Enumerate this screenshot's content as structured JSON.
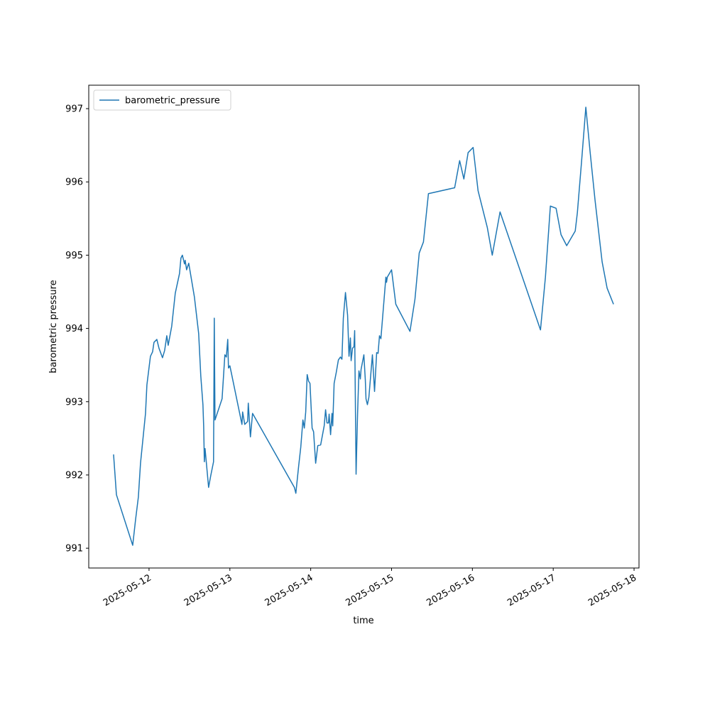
{
  "chart_data": {
    "type": "line",
    "x_label": "time",
    "y_label": "barometric pressure",
    "legend": "upper left",
    "xlim": [
      "2025-05-11T06:06",
      "2025-05-18T01:28"
    ],
    "xticks": [
      "2025-05-12",
      "2025-05-13",
      "2025-05-14",
      "2025-05-15",
      "2025-05-16",
      "2025-05-17",
      "2025-05-18"
    ],
    "ylim": [
      990.73,
      997.32
    ],
    "yticks": [
      991,
      992,
      993,
      994,
      995,
      996,
      997
    ],
    "x": [
      "2025-05-11T13:28",
      "2025-05-11T14:19",
      "2025-05-11T19:09",
      "2025-05-11T20:00",
      "2025-05-11T20:50",
      "2025-05-11T21:28",
      "2025-05-11T22:57",
      "2025-05-11T23:22",
      "2025-05-12T00:25",
      "2025-05-12T01:03",
      "2025-05-12T01:28",
      "2025-05-12T02:19",
      "2025-05-12T02:57",
      "2025-05-12T04:00",
      "2025-05-12T04:38",
      "2025-05-12T05:16",
      "2025-05-12T05:41",
      "2025-05-12T06:44",
      "2025-05-12T07:47",
      "2025-05-12T09:03",
      "2025-05-12T09:28",
      "2025-05-12T09:54",
      "2025-05-12T10:32",
      "2025-05-12T10:44",
      "2025-05-12T11:09",
      "2025-05-12T11:47",
      "2025-05-12T13:28",
      "2025-05-12T14:06",
      "2025-05-12T14:44",
      "2025-05-12T15:22",
      "2025-05-12T16:00",
      "2025-05-12T16:13",
      "2025-05-12T16:25",
      "2025-05-12T16:38",
      "2025-05-12T17:41",
      "2025-05-12T18:19",
      "2025-05-12T19:09",
      "2025-05-12T19:22",
      "2025-05-12T19:35",
      "2025-05-12T21:41",
      "2025-05-12T22:31",
      "2025-05-12T22:57",
      "2025-05-12T23:22",
      "2025-05-12T23:35",
      "2025-05-13T00:00",
      "2025-05-13T03:35",
      "2025-05-13T03:47",
      "2025-05-13T04:25",
      "2025-05-13T05:16",
      "2025-05-13T05:28",
      "2025-05-13T06:06",
      "2025-05-13T06:44",
      "2025-05-13T19:09",
      "2025-05-13T19:35",
      "2025-05-13T20:25",
      "2025-05-13T21:03",
      "2025-05-13T21:41",
      "2025-05-13T22:06",
      "2025-05-13T22:31",
      "2025-05-13T22:57",
      "2025-05-13T23:22",
      "2025-05-13T23:47",
      "2025-05-14T00:25",
      "2025-05-14T00:51",
      "2025-05-14T01:28",
      "2025-05-14T02:06",
      "2025-05-14T02:57",
      "2025-05-14T04:00",
      "2025-05-14T04:25",
      "2025-05-14T04:50",
      "2025-05-14T05:16",
      "2025-05-14T05:28",
      "2025-05-14T05:54",
      "2025-05-14T06:19",
      "2025-05-14T06:32",
      "2025-05-14T06:57",
      "2025-05-14T07:35",
      "2025-05-14T08:13",
      "2025-05-14T08:50",
      "2025-05-14T09:16",
      "2025-05-14T09:41",
      "2025-05-14T10:19",
      "2025-05-14T10:57",
      "2025-05-14T11:22",
      "2025-05-14T11:47",
      "2025-05-14T12:00",
      "2025-05-14T12:25",
      "2025-05-14T12:50",
      "2025-05-14T13:03",
      "2025-05-14T13:28",
      "2025-05-14T13:54",
      "2025-05-14T14:19",
      "2025-05-14T14:44",
      "2025-05-14T14:57",
      "2025-05-14T15:47",
      "2025-05-14T16:13",
      "2025-05-14T16:25",
      "2025-05-14T16:50",
      "2025-05-14T17:16",
      "2025-05-14T18:19",
      "2025-05-14T18:57",
      "2025-05-14T19:35",
      "2025-05-14T20:00",
      "2025-05-14T20:25",
      "2025-05-14T20:50",
      "2025-05-14T22:19",
      "2025-05-14T22:31",
      "2025-05-14T22:44",
      "2025-05-15T00:00",
      "2025-05-15T01:16",
      "2025-05-15T05:28",
      "2025-05-15T06:57",
      "2025-05-15T08:13",
      "2025-05-15T09:28",
      "2025-05-15T10:57",
      "2025-05-15T18:44",
      "2025-05-15T20:13",
      "2025-05-15T21:28",
      "2025-05-15T22:44",
      "2025-05-16T00:13",
      "2025-05-16T01:41",
      "2025-05-16T04:25",
      "2025-05-16T05:54",
      "2025-05-16T08:13",
      "2025-05-16T20:13",
      "2025-05-16T21:41",
      "2025-05-16T23:09",
      "2025-05-17T00:51",
      "2025-05-17T02:19",
      "2025-05-17T04:00",
      "2025-05-17T06:32",
      "2025-05-17T07:10",
      "2025-05-17T08:25",
      "2025-05-17T09:41",
      "2025-05-17T10:57",
      "2025-05-17T12:25",
      "2025-05-17T14:31",
      "2025-05-17T16:00",
      "2025-05-17T17:54"
    ],
    "series": [
      {
        "name": "barometric_pressure",
        "color": "#1f77b4",
        "values": [
          992.28,
          991.73,
          991.04,
          991.39,
          991.7,
          992.16,
          992.84,
          993.23,
          993.62,
          993.68,
          993.81,
          993.85,
          993.73,
          993.6,
          993.7,
          993.9,
          993.77,
          994.03,
          994.48,
          994.75,
          994.96,
          995.0,
          994.88,
          994.93,
          994.8,
          994.89,
          994.43,
          994.18,
          993.93,
          993.35,
          992.96,
          992.67,
          992.18,
          992.36,
          991.83,
          991.99,
          992.18,
          994.14,
          992.75,
          993.04,
          993.64,
          993.61,
          993.85,
          993.46,
          993.49,
          992.69,
          992.86,
          992.69,
          992.73,
          992.98,
          992.52,
          992.84,
          991.83,
          991.75,
          992.12,
          992.38,
          992.75,
          992.64,
          992.86,
          993.37,
          993.28,
          993.25,
          992.64,
          992.59,
          992.16,
          992.4,
          992.41,
          992.67,
          992.89,
          992.71,
          992.71,
          992.83,
          992.55,
          992.84,
          992.67,
          993.25,
          993.4,
          993.57,
          993.61,
          993.58,
          994.14,
          994.49,
          994.18,
          993.62,
          993.87,
          993.56,
          993.73,
          993.75,
          993.97,
          992.01,
          992.82,
          993.42,
          993.31,
          993.44,
          993.64,
          993.29,
          993.04,
          992.96,
          993.06,
          993.64,
          993.14,
          993.67,
          993.66,
          993.9,
          993.86,
          994.7,
          994.63,
          994.7,
          994.8,
          994.33,
          993.96,
          994.4,
          995.03,
          995.18,
          995.84,
          995.92,
          996.29,
          996.04,
          996.4,
          996.47,
          995.88,
          995.38,
          995.0,
          995.59,
          993.98,
          994.7,
          995.67,
          995.64,
          995.28,
          995.13,
          995.33,
          995.58,
          996.28,
          997.02,
          996.41,
          995.75,
          994.91,
          994.55,
          994.33
        ]
      }
    ]
  }
}
